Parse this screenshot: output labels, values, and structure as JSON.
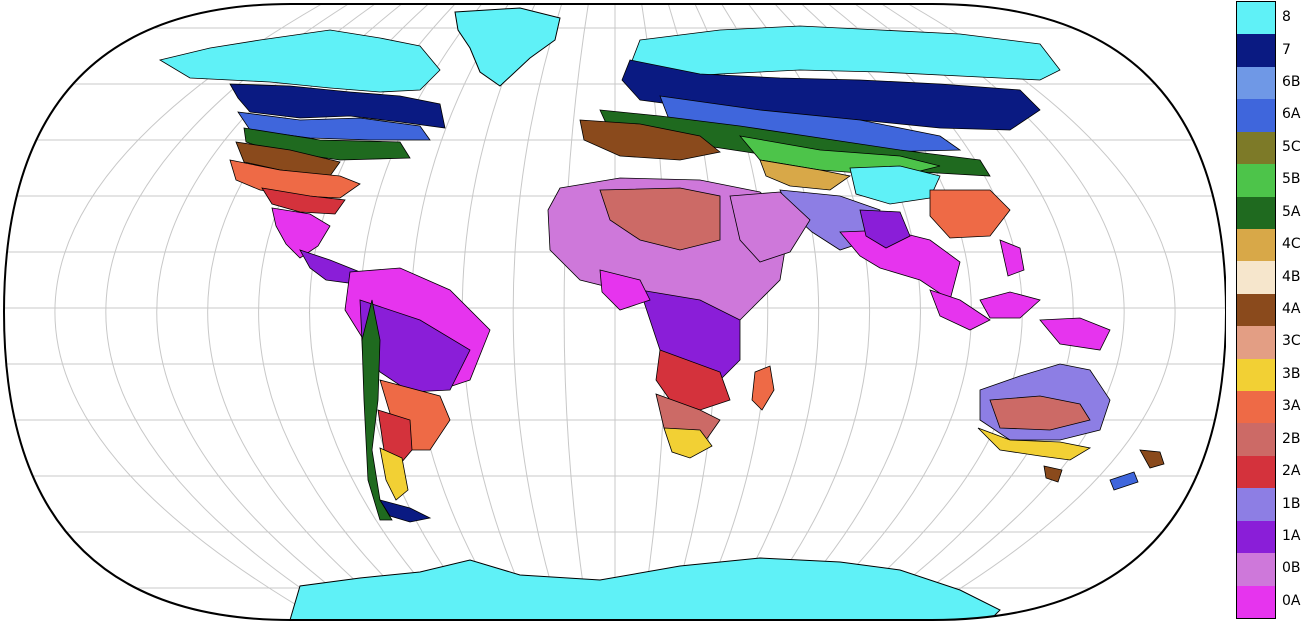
{
  "map": {
    "projection": "robinson",
    "ocean_color": "#ffffff",
    "graticule_color": "#c8c8c8",
    "outline_color": "#000000"
  },
  "legend": {
    "items": [
      {
        "label": "8",
        "color": "#5ff1f7"
      },
      {
        "label": "7",
        "color": "#0a1a82"
      },
      {
        "label": "6B",
        "color": "#6f98e6"
      },
      {
        "label": "6A",
        "color": "#3f66dc"
      },
      {
        "label": "5C",
        "color": "#7d7a28"
      },
      {
        "label": "5B",
        "color": "#4dc44a"
      },
      {
        "label": "5A",
        "color": "#1f6a1f"
      },
      {
        "label": "4C",
        "color": "#d8a848"
      },
      {
        "label": "4B",
        "color": "#f6e6cc"
      },
      {
        "label": "4A",
        "color": "#8a4a1c"
      },
      {
        "label": "3C",
        "color": "#e39e84"
      },
      {
        "label": "3B",
        "color": "#f2d034"
      },
      {
        "label": "3A",
        "color": "#ee6a46"
      },
      {
        "label": "2B",
        "color": "#cc6a66"
      },
      {
        "label": "2A",
        "color": "#d4323c"
      },
      {
        "label": "1B",
        "color": "#8d7ee4"
      },
      {
        "label": "1A",
        "color": "#8a1ed8"
      },
      {
        "label": "0B",
        "color": "#ce78da"
      },
      {
        "label": "0A",
        "color": "#e634ee"
      }
    ]
  }
}
